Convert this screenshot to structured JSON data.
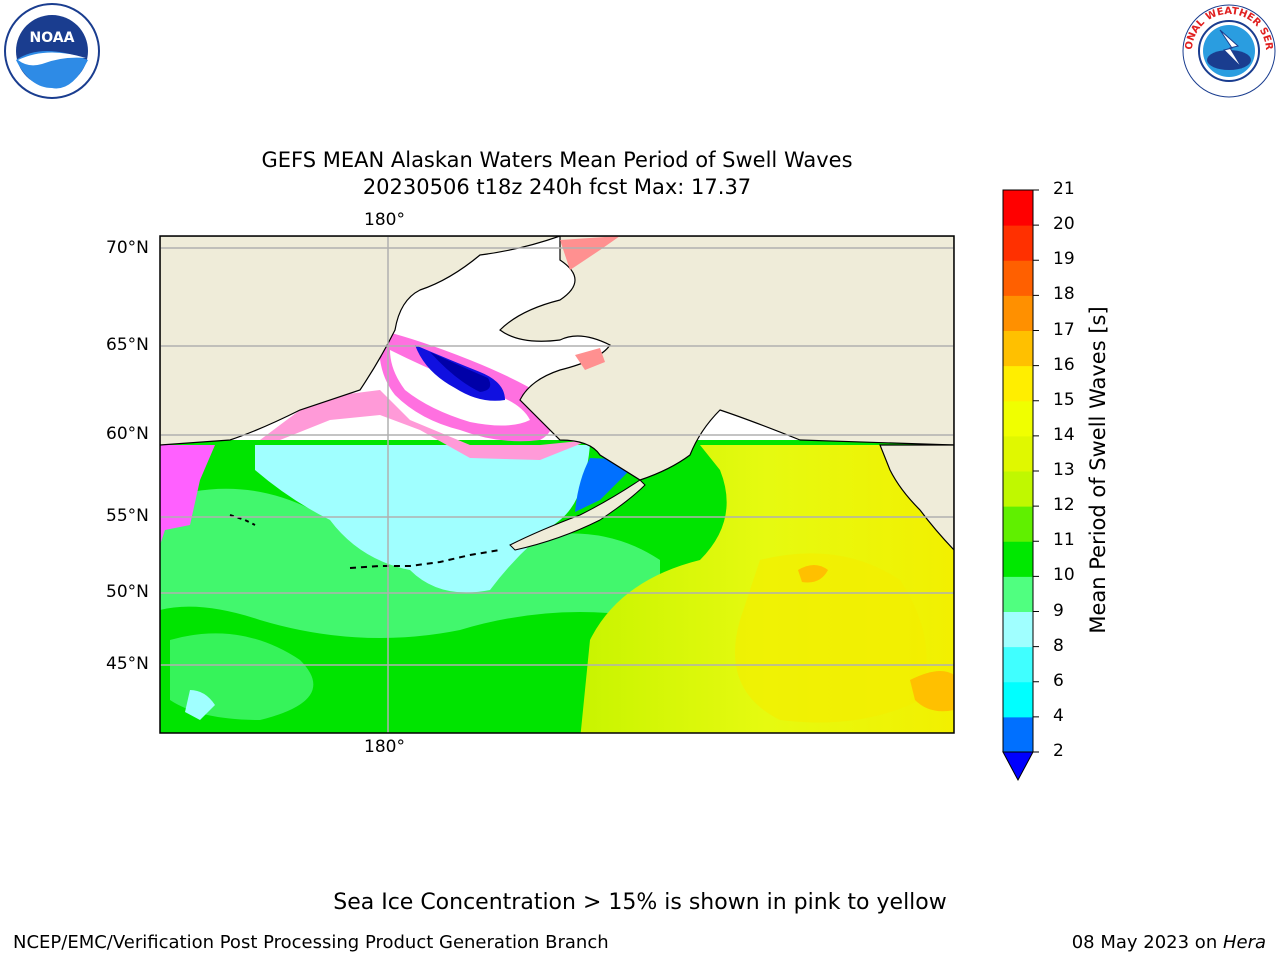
{
  "title": {
    "line1": "GEFS MEAN Alaskan Waters Mean Period of Swell Waves",
    "line2": "20230506 t18z 240h fcst   Max: 17.37"
  },
  "logos": {
    "left": {
      "icon": "noaa-logo",
      "text": "NOAA"
    },
    "right": {
      "icon": "nws-logo",
      "text": "NATIONAL WEATHER SERVICE"
    }
  },
  "map": {
    "lat_labels": [
      "70°N",
      "65°N",
      "60°N",
      "55°N",
      "50°N",
      "45°N"
    ],
    "lon_label_top": "180°",
    "lon_label_bottom": "180°"
  },
  "colorbar": {
    "label": "Mean Period of Swell Waves [s]",
    "ticks": [
      "2",
      "4",
      "6",
      "8",
      "9",
      "10",
      "11",
      "12",
      "13",
      "14",
      "15",
      "16",
      "17",
      "18",
      "19",
      "20",
      "21"
    ],
    "colors": [
      "#0070ff",
      "#00ffff",
      "#40ffff",
      "#a0ffff",
      "#50ff80",
      "#00e800",
      "#60f000",
      "#c0f800",
      "#e0f800",
      "#f0ff00",
      "#ffee00",
      "#ffc000",
      "#ff9000",
      "#ff6000",
      "#ff3000",
      "#ff0000"
    ],
    "extend_color": "#0000ff"
  },
  "footer": {
    "note": "Sea Ice Concentration > 15% is shown in pink to yellow",
    "left": "NCEP/EMC/Verification Post Processing Product Generation Branch",
    "date": "08 May 2023 on ",
    "machine": "Hera"
  }
}
